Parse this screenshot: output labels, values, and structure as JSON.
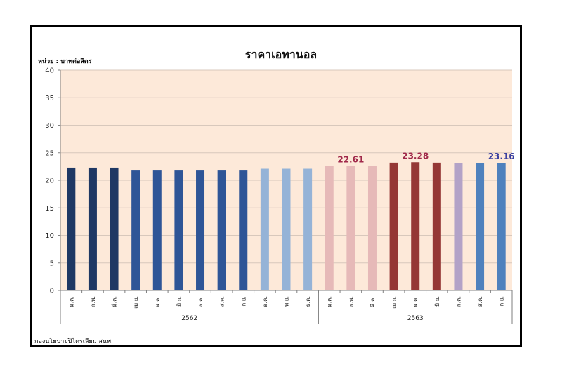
{
  "chart_data": {
    "type": "bar",
    "title": "ราคาเอทานอล",
    "unit_label": "หน่วย : บาทต่อลิตร",
    "source": "กองนโยบายปิโตรเลียม สนพ.",
    "ylim": [
      0,
      40
    ],
    "yticks": [
      0,
      5,
      10,
      15,
      20,
      25,
      30,
      35,
      40
    ],
    "grid": true,
    "plot_bg": "#fde9d9",
    "categories": [
      "ม.ค.",
      "ก.พ.",
      "มี.ค.",
      "เม.ย.",
      "พ.ค.",
      "มิ.ย.",
      "ก.ค.",
      "ส.ค.",
      "ก.ย.",
      "ต.ค.",
      "พ.ย.",
      "ธ.ค.",
      "ม.ค.",
      "ก.พ.",
      "มี.ค.",
      "เม.ย.",
      "พ.ค.",
      "มิ.ย.",
      "ก.ค.",
      "ส.ค.",
      "ก.ย."
    ],
    "years": [
      {
        "label": "2562",
        "start": 0,
        "end": 11
      },
      {
        "label": "2563",
        "start": 12,
        "end": 20
      }
    ],
    "values": [
      22.3,
      22.3,
      22.3,
      21.9,
      21.9,
      21.9,
      21.9,
      21.9,
      21.9,
      22.1,
      22.1,
      22.1,
      22.6,
      22.61,
      22.6,
      23.2,
      23.28,
      23.2,
      23.1,
      23.16,
      23.16
    ],
    "colors": [
      "#1f3864",
      "#1f3864",
      "#1f3864",
      "#2e5597",
      "#2e5597",
      "#2e5597",
      "#2e5597",
      "#2e5597",
      "#2e5597",
      "#95b3d7",
      "#95b3d7",
      "#95b3d7",
      "#e6b9b8",
      "#e6b9b8",
      "#e6b9b8",
      "#953735",
      "#953735",
      "#953735",
      "#b3a2c7",
      "#4f81bd",
      "#4f81bd"
    ],
    "data_labels": [
      {
        "index": 13,
        "text": "22.61",
        "color": "#a0284a"
      },
      {
        "index": 16,
        "text": "23.28",
        "color": "#a0284a"
      },
      {
        "index": 20,
        "text": "23.16",
        "color": "#3a3fa0"
      }
    ]
  }
}
